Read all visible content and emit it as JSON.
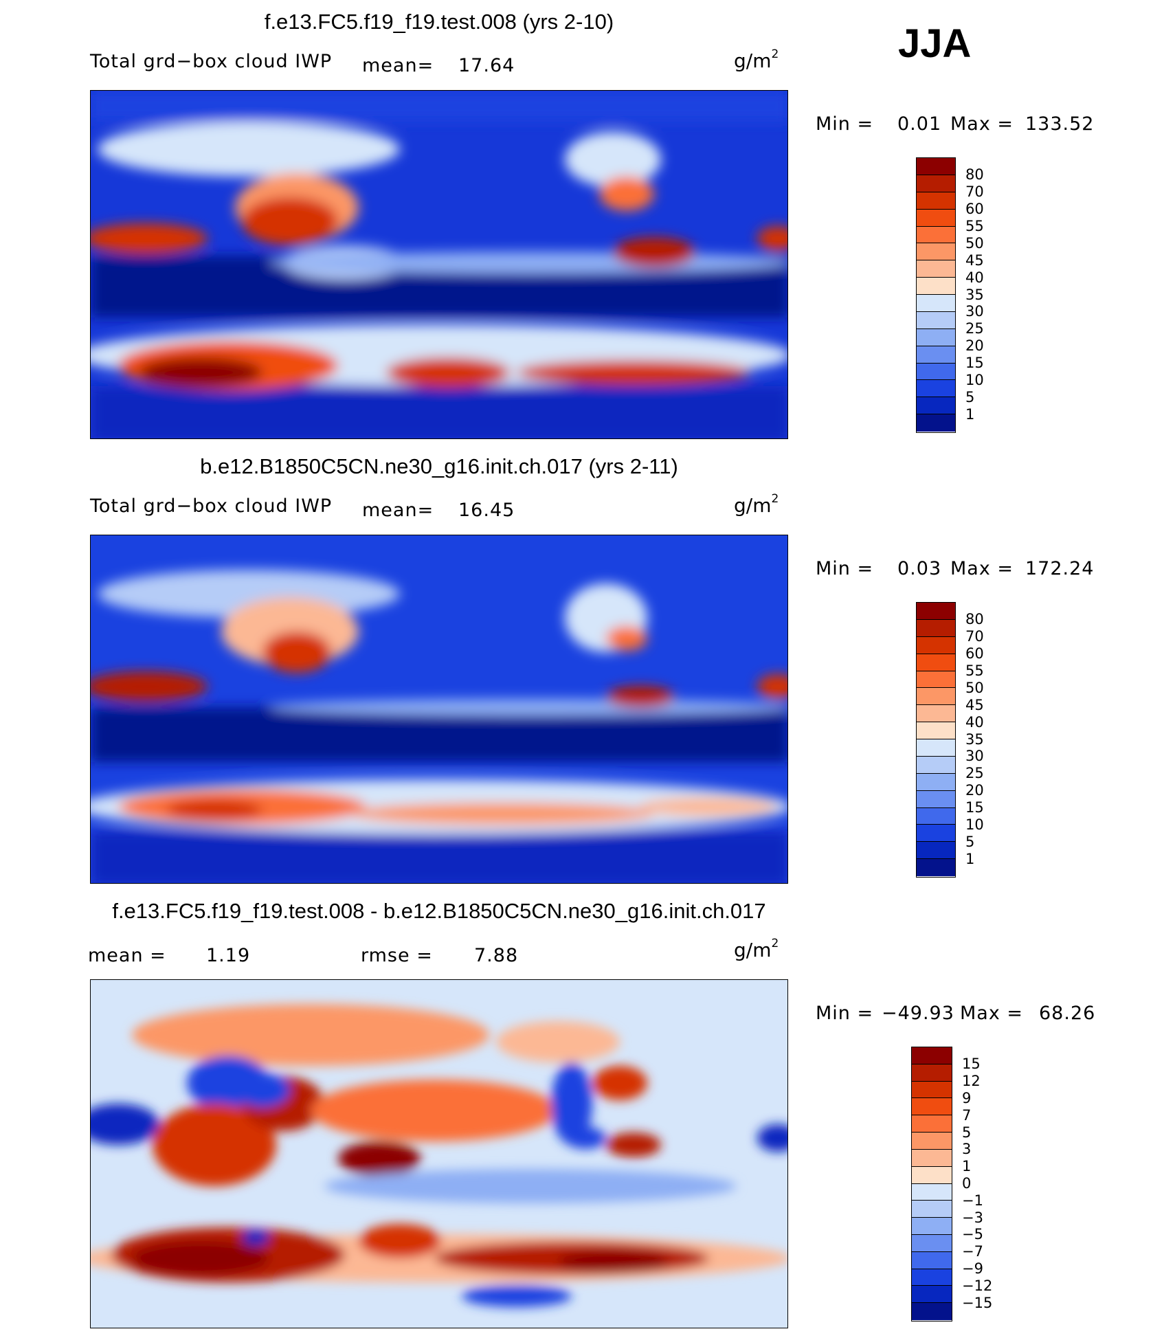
{
  "season": "JJA",
  "panels": [
    {
      "title": "f.e13.FC5.f19_f19.test.008 (yrs 2-10)",
      "variable": "Total grd−box cloud IWP",
      "stat_label": "mean=",
      "stat_value": "17.64",
      "units": "g/m",
      "units_exp": "2",
      "min_label": "Min =",
      "min_value": "0.01",
      "max_label": "Max =",
      "max_value": "133.52",
      "colorbar": {
        "labels": [
          "80",
          "70",
          "60",
          "55",
          "50",
          "45",
          "40",
          "35",
          "30",
          "25",
          "20",
          "15",
          "10",
          "5",
          "1"
        ],
        "colors": [
          "#8c0000",
          "#b51d00",
          "#d53300",
          "#f04d10",
          "#fb7038",
          "#fc9766",
          "#fcb894",
          "#fde0c8",
          "#d6e6fa",
          "#b5ccf7",
          "#8eaff4",
          "#6a8ff1",
          "#4069ec",
          "#1a42e0",
          "#0727bf",
          "#03128c"
        ]
      }
    },
    {
      "title": "b.e12.B1850C5CN.ne30_g16.init.ch.017 (yrs 2-11)",
      "variable": "Total grd−box cloud IWP",
      "stat_label": "mean=",
      "stat_value": "16.45",
      "units": "g/m",
      "units_exp": "2",
      "min_label": "Min =",
      "min_value": "0.03",
      "max_label": "Max =",
      "max_value": "172.24",
      "colorbar": {
        "labels": [
          "80",
          "70",
          "60",
          "55",
          "50",
          "45",
          "40",
          "35",
          "30",
          "25",
          "20",
          "15",
          "10",
          "5",
          "1"
        ],
        "colors": [
          "#8c0000",
          "#b51d00",
          "#d53300",
          "#f04d10",
          "#fb7038",
          "#fc9766",
          "#fcb894",
          "#fde0c8",
          "#d6e6fa",
          "#b5ccf7",
          "#8eaff4",
          "#6a8ff1",
          "#4069ec",
          "#1a42e0",
          "#0727bf",
          "#03128c"
        ]
      }
    },
    {
      "title": "f.e13.FC5.f19_f19.test.008 - b.e12.B1850C5CN.ne30_g16.init.ch.017",
      "mean_label": "mean =",
      "mean_value": "1.19",
      "rmse_label": "rmse =",
      "rmse_value": "7.88",
      "units": "g/m",
      "units_exp": "2",
      "min_label": "Min =",
      "min_value": "−49.93",
      "max_label": "Max =",
      "max_value": "68.26",
      "colorbar": {
        "labels": [
          "15",
          "12",
          "9",
          "7",
          "5",
          "3",
          "1",
          "0",
          "−1",
          "−3",
          "−5",
          "−7",
          "−9",
          "−12",
          "−15"
        ],
        "colors": [
          "#8c0000",
          "#b51d00",
          "#d53300",
          "#f04d10",
          "#fb7038",
          "#fc9766",
          "#fcb894",
          "#fde0c8",
          "#d6e6fa",
          "#b5ccf7",
          "#8eaff4",
          "#6a8ff1",
          "#4069ec",
          "#1a42e0",
          "#0727bf",
          "#03128c"
        ]
      }
    }
  ]
}
